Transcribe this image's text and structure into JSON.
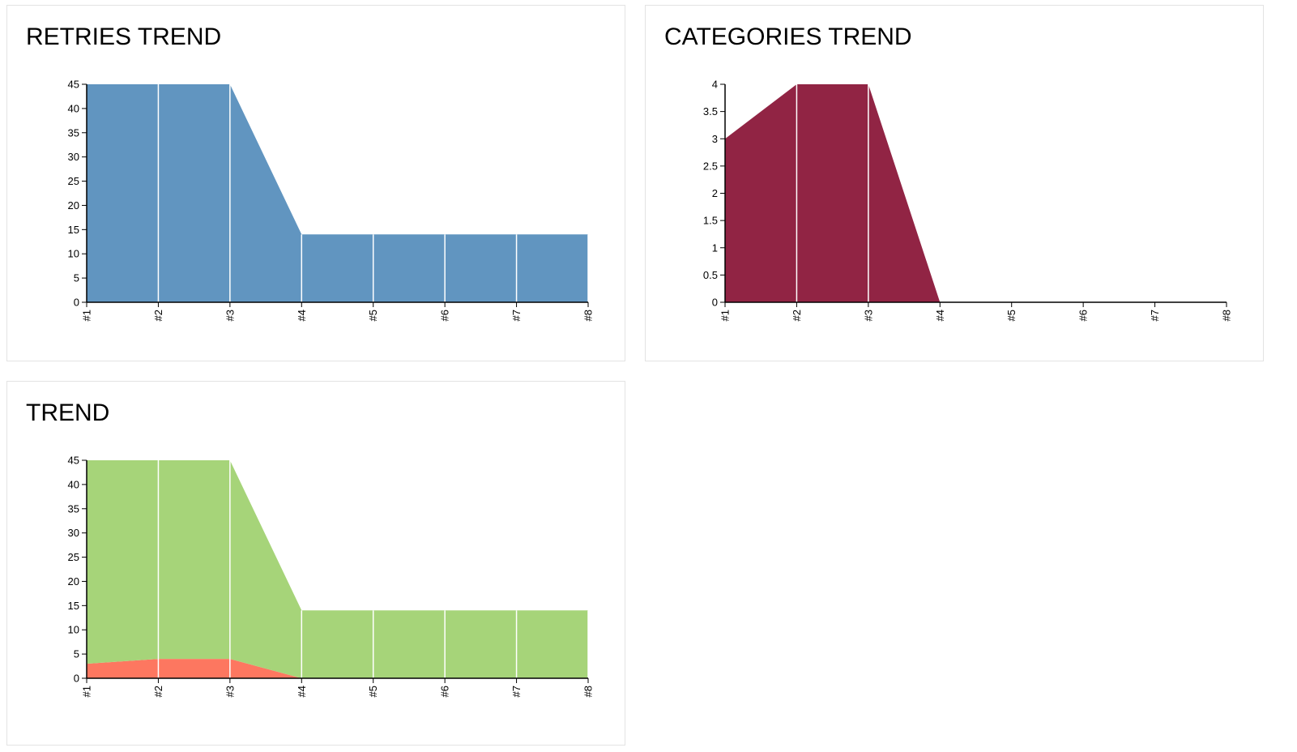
{
  "chart_data": [
    {
      "id": "retries",
      "type": "area",
      "title": "RETRIES TREND",
      "xlabel": "",
      "ylabel": "",
      "categories": [
        "#1",
        "#2",
        "#3",
        "#4",
        "#5",
        "#6",
        "#7",
        "#8"
      ],
      "yticks": [
        "0",
        "5",
        "10",
        "15",
        "20",
        "25",
        "30",
        "35",
        "40",
        "45"
      ],
      "ylim": [
        0,
        45
      ],
      "grid": false,
      "series": [
        {
          "values": [
            45,
            45,
            45,
            14,
            14,
            14,
            14,
            14
          ],
          "color": "#6195c0"
        }
      ]
    },
    {
      "id": "categories",
      "type": "area",
      "title": "CATEGORIES TREND",
      "xlabel": "",
      "ylabel": "",
      "categories": [
        "#1",
        "#2",
        "#3",
        "#4",
        "#5",
        "#6",
        "#7",
        "#8"
      ],
      "yticks": [
        "0",
        "0.5",
        "1",
        "1.5",
        "2",
        "2.5",
        "3",
        "3.5",
        "4"
      ],
      "ylim": [
        0,
        4
      ],
      "grid": false,
      "series": [
        {
          "values": [
            3,
            4,
            4,
            0,
            0,
            0,
            0,
            0
          ],
          "color": "#912444"
        }
      ]
    },
    {
      "id": "trend",
      "type": "area",
      "stacked": true,
      "title": "TREND",
      "xlabel": "",
      "ylabel": "",
      "categories": [
        "#1",
        "#2",
        "#3",
        "#4",
        "#5",
        "#6",
        "#7",
        "#8"
      ],
      "yticks": [
        "0",
        "5",
        "10",
        "15",
        "20",
        "25",
        "30",
        "35",
        "40",
        "45"
      ],
      "ylim": [
        0,
        45
      ],
      "grid": false,
      "series": [
        {
          "values": [
            3,
            4,
            4,
            0,
            0,
            0,
            0,
            0
          ],
          "color": "#fd7760"
        },
        {
          "values": [
            42,
            41,
            41,
            14,
            14,
            14,
            14,
            14
          ],
          "color": "#a6d479"
        }
      ]
    }
  ]
}
